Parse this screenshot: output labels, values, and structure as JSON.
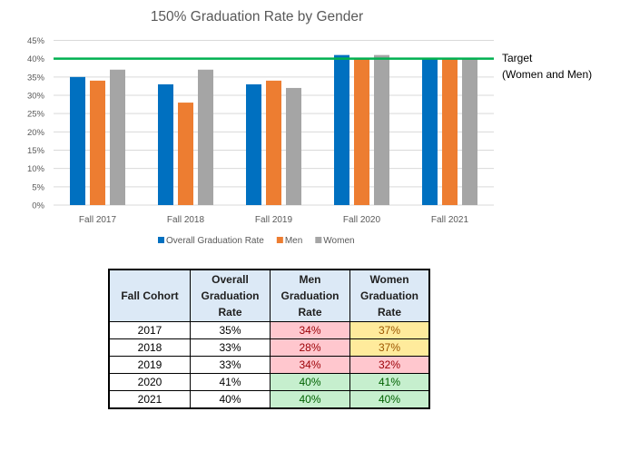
{
  "chart_data": {
    "type": "bar",
    "title": "150% Graduation Rate by Gender",
    "xlabel": "",
    "ylabel": "",
    "categories": [
      "Fall 2017",
      "Fall 2018",
      "Fall 2019",
      "Fall 2020",
      "Fall 2021"
    ],
    "series": [
      {
        "name": "Overall Graduation Rate",
        "color": "#0070c0",
        "values": [
          35,
          33,
          33,
          41,
          40
        ]
      },
      {
        "name": "Men",
        "color": "#ed7d31",
        "values": [
          34,
          28,
          34,
          40,
          40
        ]
      },
      {
        "name": "Women",
        "color": "#a5a5a5",
        "values": [
          37,
          37,
          32,
          41,
          40
        ]
      }
    ],
    "ylim": [
      0,
      45
    ],
    "yticks": [
      0,
      5,
      10,
      15,
      20,
      25,
      30,
      35,
      40,
      45
    ],
    "ytick_labels": [
      "0%",
      "5%",
      "10%",
      "15%",
      "20%",
      "25%",
      "30%",
      "35%",
      "40%",
      "45%"
    ],
    "grid": true,
    "legend_position": "bottom",
    "target_line": {
      "value": 40,
      "color": "#00b050",
      "label_line1": "Target",
      "label_line2": "(Women and Men)"
    }
  },
  "table": {
    "headers": [
      [
        "Fall Cohort"
      ],
      [
        "Overall",
        "Graduation",
        "Rate"
      ],
      [
        "Men",
        "Graduation",
        "Rate"
      ],
      [
        "Women",
        "Graduation",
        "Rate"
      ]
    ],
    "rows": [
      {
        "cohort": "2017",
        "overall": "35%",
        "men": "34%",
        "women": "37%",
        "men_status": "bad",
        "women_status": "neutral"
      },
      {
        "cohort": "2018",
        "overall": "33%",
        "men": "28%",
        "women": "37%",
        "men_status": "bad",
        "women_status": "neutral"
      },
      {
        "cohort": "2019",
        "overall": "33%",
        "men": "34%",
        "women": "32%",
        "men_status": "bad",
        "women_status": "bad"
      },
      {
        "cohort": "2020",
        "overall": "41%",
        "men": "40%",
        "women": "41%",
        "men_status": "good",
        "women_status": "good"
      },
      {
        "cohort": "2021",
        "overall": "40%",
        "men": "40%",
        "women": "40%",
        "men_status": "good",
        "women_status": "good"
      }
    ]
  }
}
